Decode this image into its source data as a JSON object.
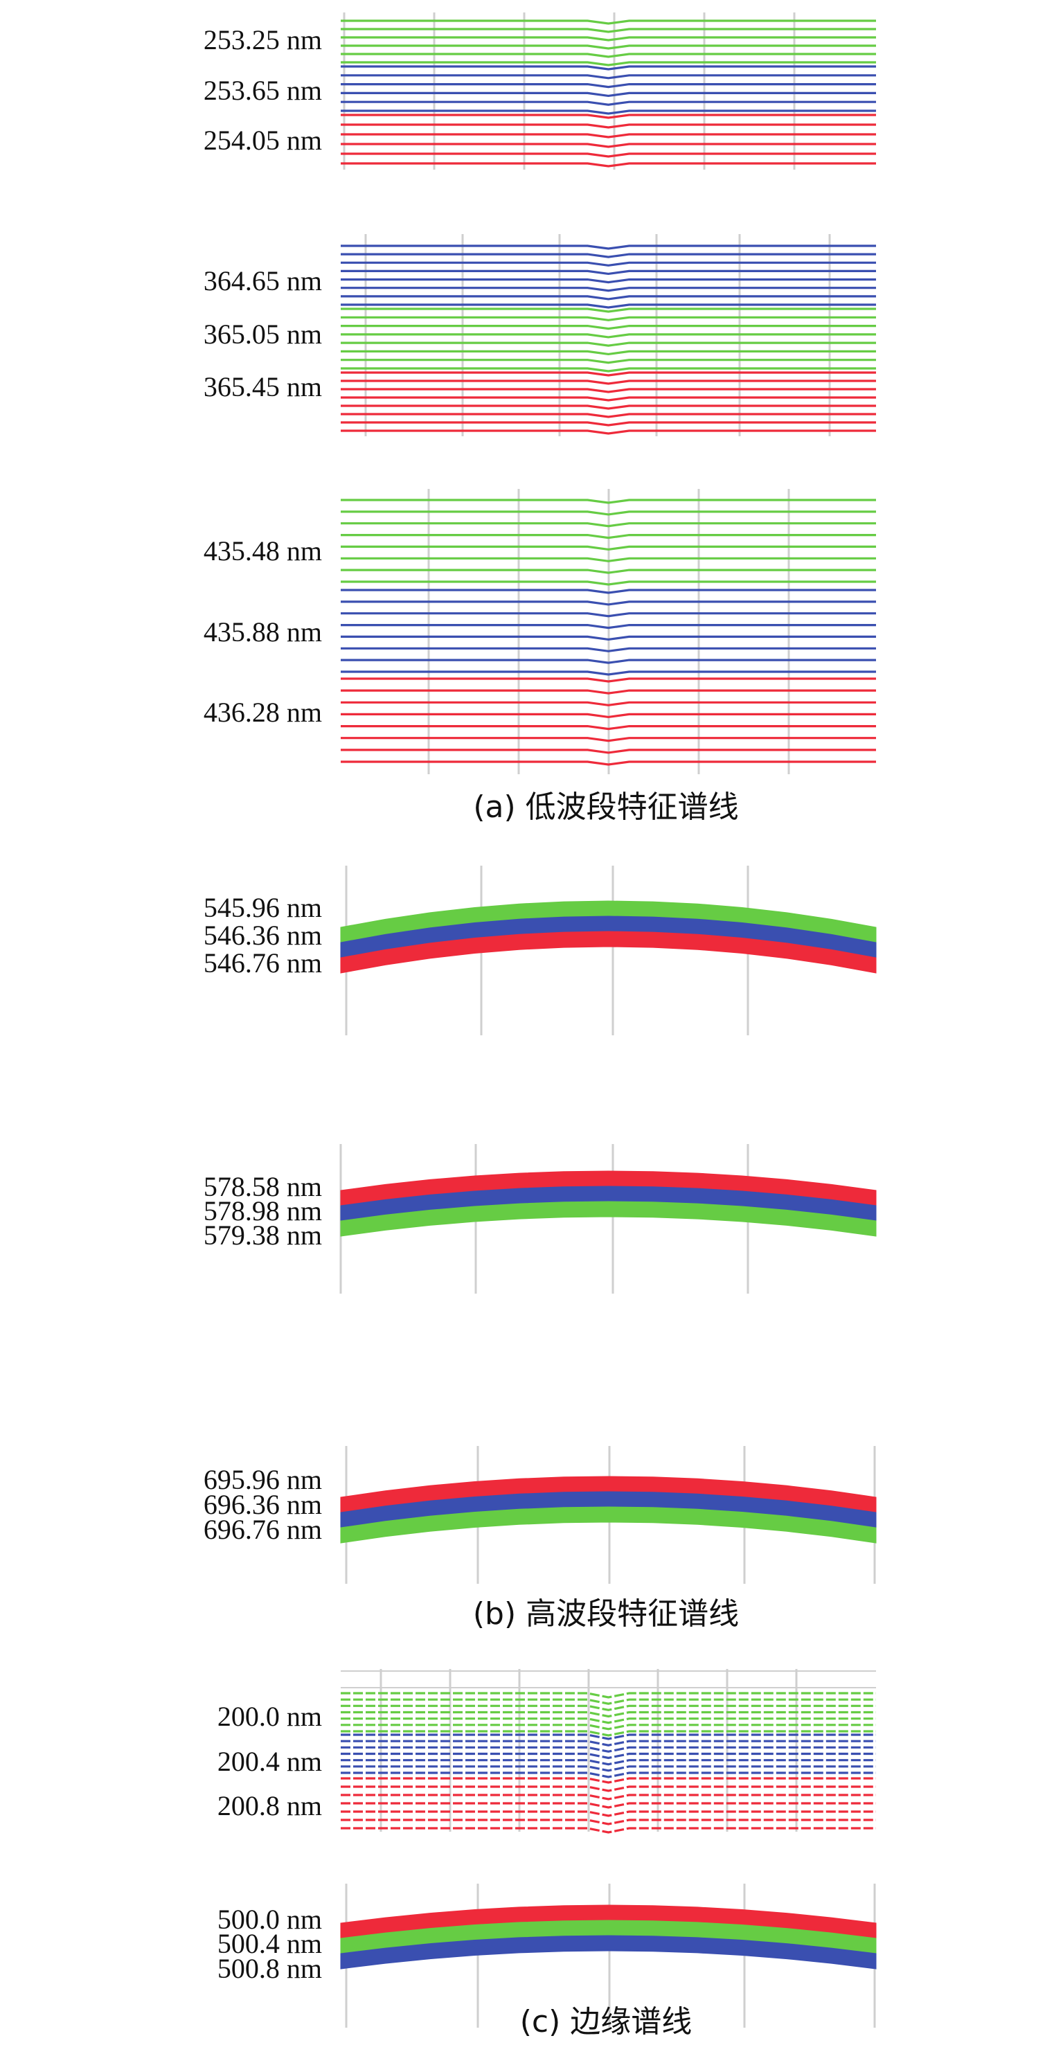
{
  "captions": {
    "a": "(a) 低波段特征谱线",
    "b": "(b) 高波段特征谱线",
    "c": "(c) 边缘谱线"
  },
  "colors": {
    "green": "#66cc44",
    "blue": "#3a4fb0",
    "red": "#ee2a3a",
    "grid": "#cfcfcf"
  },
  "panels": [
    {
      "id": "a1",
      "style": "thin",
      "group": "a",
      "labels": [
        "253.25 nm",
        "253.65 nm",
        "254.05 nm"
      ],
      "bands": [
        {
          "color": "green",
          "count": 6
        },
        {
          "color": "blue",
          "count": 6
        },
        {
          "color": "red",
          "count": 6
        }
      ]
    },
    {
      "id": "a2",
      "style": "thin",
      "group": "a",
      "labels": [
        "364.65 nm",
        "365.05 nm",
        "365.45 nm"
      ],
      "bands": [
        {
          "color": "blue",
          "count": 8
        },
        {
          "color": "green",
          "count": 8
        },
        {
          "color": "red",
          "count": 8
        }
      ]
    },
    {
      "id": "a3",
      "style": "thin",
      "group": "a",
      "labels": [
        "435.48 nm",
        "435.88 nm",
        "436.28 nm"
      ],
      "bands": [
        {
          "color": "green",
          "count": 8
        },
        {
          "color": "blue",
          "count": 8
        },
        {
          "color": "red",
          "count": 8
        }
      ]
    },
    {
      "id": "b1",
      "style": "thick",
      "group": "b",
      "labels": [
        "545.96 nm",
        "546.36 nm",
        "546.76 nm"
      ],
      "bands": [
        {
          "color": "green"
        },
        {
          "color": "blue"
        },
        {
          "color": "red"
        }
      ]
    },
    {
      "id": "b2",
      "style": "thick",
      "group": "b",
      "labels": [
        "578.58 nm",
        "578.98 nm",
        "579.38 nm"
      ],
      "bands": [
        {
          "color": "red"
        },
        {
          "color": "blue"
        },
        {
          "color": "green"
        }
      ]
    },
    {
      "id": "b3",
      "style": "thick",
      "group": "b",
      "labels": [
        "695.96 nm",
        "696.36 nm",
        "696.76 nm"
      ],
      "bands": [
        {
          "color": "red"
        },
        {
          "color": "blue"
        },
        {
          "color": "green"
        }
      ]
    },
    {
      "id": "c1",
      "style": "dashed",
      "group": "c",
      "labels": [
        "200.0 nm",
        "200.4 nm",
        "200.8 nm"
      ],
      "bands": [
        {
          "color": "green",
          "count": 7
        },
        {
          "color": "blue",
          "count": 7
        },
        {
          "color": "red",
          "count": 7
        }
      ]
    },
    {
      "id": "c2",
      "style": "thick",
      "group": "c",
      "labels": [
        "500.0 nm",
        "500.4 nm",
        "500.8 nm"
      ],
      "bands": [
        {
          "color": "red"
        },
        {
          "color": "green"
        },
        {
          "color": "blue"
        }
      ]
    }
  ]
}
